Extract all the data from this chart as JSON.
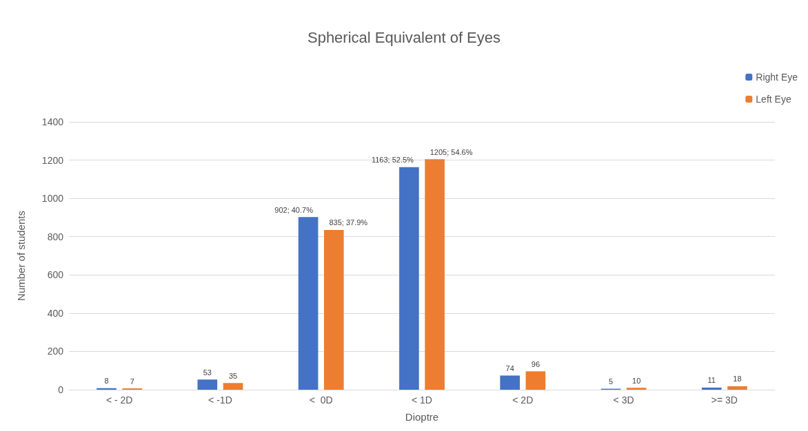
{
  "chart_data": {
    "type": "bar",
    "title": "Spherical Equivalent of Eyes",
    "xlabel": "Dioptre",
    "ylabel": "Number of students",
    "categories": [
      "< - 2D",
      "< -1D",
      "<  0D",
      "< 1D",
      "< 2D",
      "< 3D",
      ">= 3D"
    ],
    "series": [
      {
        "name": "Right Eye",
        "color": "#4472c4",
        "values": [
          8,
          53,
          902,
          1163,
          74,
          5,
          11
        ],
        "value_labels": [
          "8",
          "53",
          "902; 40.7%",
          "1163; 52.5%",
          "74",
          "5",
          "11"
        ]
      },
      {
        "name": "Left Eye",
        "color": "#ed7d31",
        "values": [
          7,
          35,
          835,
          1205,
          96,
          10,
          18
        ],
        "value_labels": [
          "7",
          "35",
          "835; 37.9%",
          "1205; 54.6%",
          "96",
          "10",
          "18"
        ]
      }
    ],
    "ylim": [
      0,
      1400
    ],
    "yticks": [
      0,
      200,
      400,
      600,
      800,
      1000,
      1200,
      1400
    ],
    "grid": "y",
    "legend": "top right"
  }
}
